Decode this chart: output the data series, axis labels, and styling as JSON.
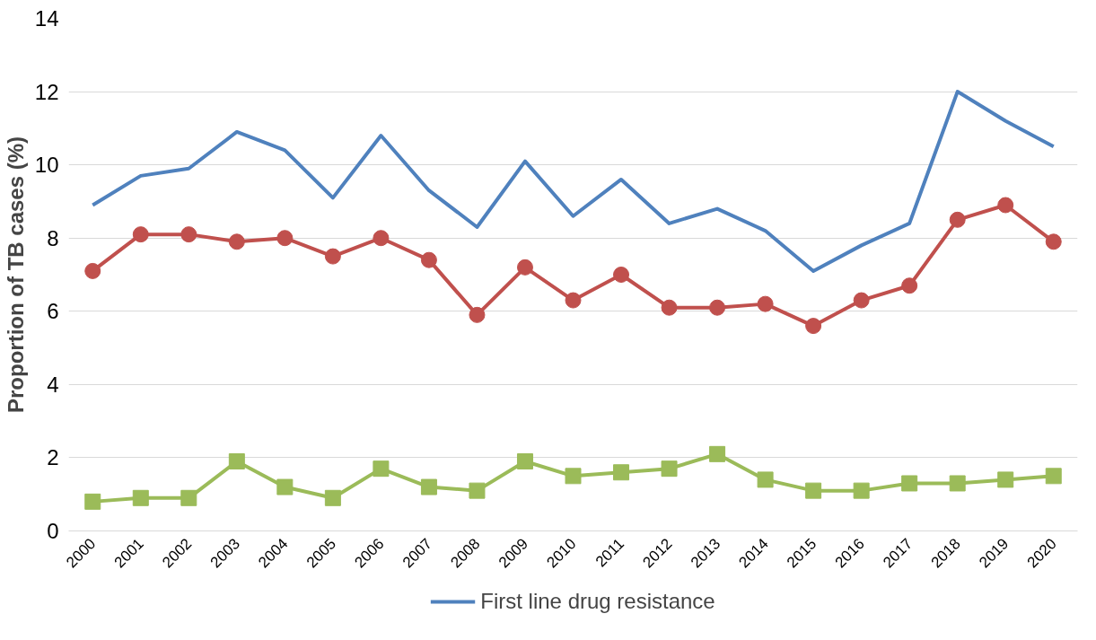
{
  "chart_data": {
    "type": "line",
    "ylabel": "Proportion of TB cases (%)",
    "categories": [
      "2000",
      "2001",
      "2002",
      "2003",
      "2004",
      "2005",
      "2006",
      "2007",
      "2008",
      "2009",
      "2010",
      "2011",
      "2012",
      "2013",
      "2014",
      "2015",
      "2016",
      "2017",
      "2018",
      "2019",
      "2020"
    ],
    "series": [
      {
        "name": "First line drug resistance",
        "color": "#4f81bd",
        "marker": "none",
        "values": [
          8.9,
          9.7,
          9.9,
          10.9,
          10.4,
          9.1,
          10.8,
          9.3,
          8.3,
          10.1,
          8.6,
          9.6,
          8.4,
          8.8,
          8.2,
          7.1,
          7.8,
          8.4,
          12.0,
          11.2,
          10.5
        ]
      },
      {
        "color": "#c0504d",
        "marker": "circle",
        "values": [
          7.1,
          8.1,
          8.1,
          7.9,
          8.0,
          7.5,
          8.0,
          7.4,
          5.9,
          7.2,
          6.3,
          7.0,
          6.1,
          6.1,
          6.2,
          5.6,
          6.3,
          6.7,
          8.5,
          8.9,
          7.9
        ]
      },
      {
        "color": "#9bbb59",
        "marker": "square",
        "values": [
          0.8,
          0.9,
          0.9,
          1.9,
          1.2,
          0.9,
          1.7,
          1.2,
          1.1,
          1.9,
          1.5,
          1.6,
          1.7,
          2.1,
          1.4,
          1.1,
          1.1,
          1.3,
          1.3,
          1.4,
          1.5
        ]
      }
    ],
    "ylim": [
      0,
      14
    ],
    "yticks": [
      0,
      2,
      4,
      6,
      8,
      10,
      12,
      14
    ],
    "grid": "y",
    "legend": "bottom",
    "line_style": "solid"
  }
}
